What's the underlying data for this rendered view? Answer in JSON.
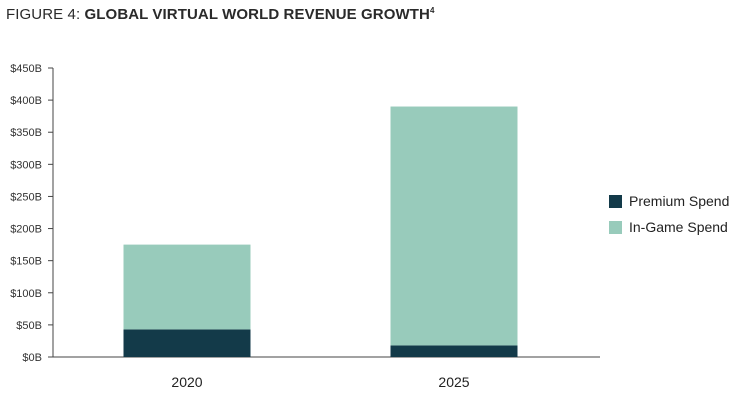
{
  "title": {
    "prefix": "FIGURE 4: ",
    "main": "GLOBAL VIRTUAL WORLD REVENUE GROWTH",
    "sup": "4"
  },
  "chart_data": {
    "type": "bar",
    "stacked": true,
    "categories": [
      "2020",
      "2025"
    ],
    "series": [
      {
        "name": "Premium Spend",
        "values": [
          43,
          18
        ],
        "color": "#133a49"
      },
      {
        "name": "In-Game Spend",
        "values": [
          132,
          372
        ],
        "color": "#98cbbb"
      }
    ],
    "ylim": [
      0,
      450
    ],
    "yticks": [
      0,
      50,
      100,
      150,
      200,
      250,
      300,
      350,
      400,
      450
    ],
    "ytick_labels": [
      "$0B",
      "$50B",
      "$100B",
      "$150B",
      "$200B",
      "$250B",
      "$300B",
      "$350B",
      "$400B",
      "$450B"
    ],
    "grid": false,
    "legend": "right"
  }
}
